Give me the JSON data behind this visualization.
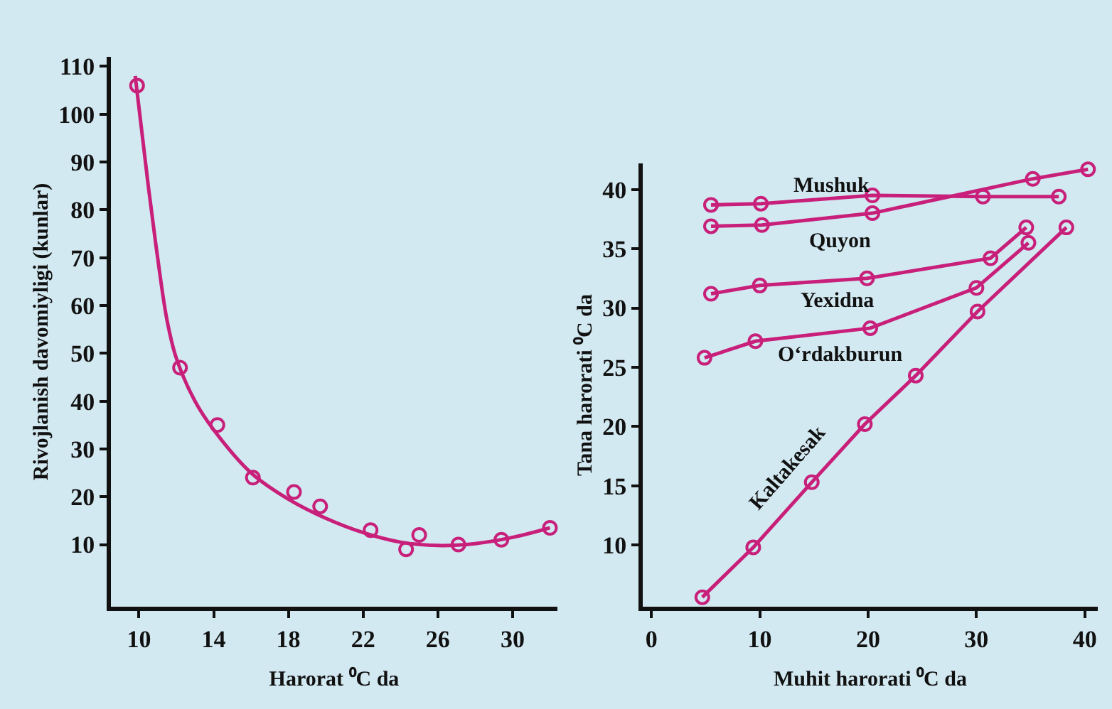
{
  "chart_data": [
    {
      "type": "scatter",
      "xlabel": "Harorat ⁰C da",
      "ylabel": "Rivojlanish davomiyligi (kunlar)",
      "xlim": [
        8.5,
        32.4
      ],
      "ylim": [
        -3,
        112
      ],
      "xticks": [
        10,
        14,
        18,
        22,
        26,
        30
      ],
      "yticks": [
        10,
        20,
        30,
        40,
        50,
        60,
        70,
        80,
        90,
        100,
        110
      ],
      "grid": false,
      "legend": false,
      "marker": "circle",
      "series": [
        {
          "color": "#c8207a",
          "x": [
            9.9,
            12.2,
            14.2,
            16.1,
            18.3,
            19.7,
            22.4,
            24.3,
            25.0,
            27.1,
            29.4,
            32.0
          ],
          "values": [
            106,
            47,
            35,
            24,
            21,
            18,
            13,
            9,
            12,
            10,
            11,
            13.5
          ]
        },
        {
          "type": "line",
          "marker": "none",
          "line_style": "solid",
          "color": "#c8207a",
          "x": [
            9.8,
            10.5,
            11,
            11.5,
            12,
            13,
            14,
            16,
            18,
            20,
            22,
            24,
            26,
            28,
            30,
            32
          ],
          "values": [
            108,
            85,
            70,
            57,
            49,
            40,
            34,
            25,
            19.5,
            15.5,
            12.5,
            10.5,
            9.8,
            10.2,
            11.5,
            13.5
          ]
        }
      ]
    },
    {
      "type": "line",
      "xlabel": "Muhit harorati ⁰C da",
      "ylabel": "Tana harorati ⁰C da",
      "xlim": [
        -0.8,
        41.2
      ],
      "ylim": [
        4.8,
        42.2
      ],
      "xticks": [
        0,
        10,
        20,
        30,
        40
      ],
      "yticks": [
        10,
        15,
        20,
        25,
        30,
        35,
        40
      ],
      "grid": false,
      "legend": false,
      "marker": "circle",
      "line_style": "solid",
      "series": [
        {
          "name": "Mushuk",
          "color": "#c8207a",
          "x": [
            5.5,
            10.1,
            20.4,
            30.6,
            37.6
          ],
          "values": [
            38.7,
            38.8,
            39.5,
            39.4,
            39.4
          ]
        },
        {
          "name": "Quyon",
          "color": "#c8207a",
          "x": [
            5.5,
            10.2,
            20.4,
            35.2,
            40.3
          ],
          "values": [
            36.9,
            37.0,
            38.0,
            40.9,
            41.7
          ]
        },
        {
          "name": "Yexidna",
          "color": "#c8207a",
          "x": [
            5.5,
            10.0,
            19.9,
            31.3,
            34.6
          ],
          "values": [
            31.2,
            31.9,
            32.5,
            34.2,
            36.8
          ]
        },
        {
          "name": "O‘rdakburun",
          "color": "#c8207a",
          "x": [
            4.9,
            9.6,
            20.2,
            30.0,
            34.8
          ],
          "values": [
            25.8,
            27.2,
            28.3,
            31.7,
            35.5
          ]
        },
        {
          "name": "Kaltakesak",
          "color": "#c8207a",
          "x": [
            4.7,
            9.4,
            14.8,
            19.7,
            24.4,
            30.1,
            38.3
          ],
          "values": [
            5.6,
            9.8,
            15.3,
            20.2,
            24.3,
            29.7,
            36.8
          ]
        }
      ]
    }
  ]
}
